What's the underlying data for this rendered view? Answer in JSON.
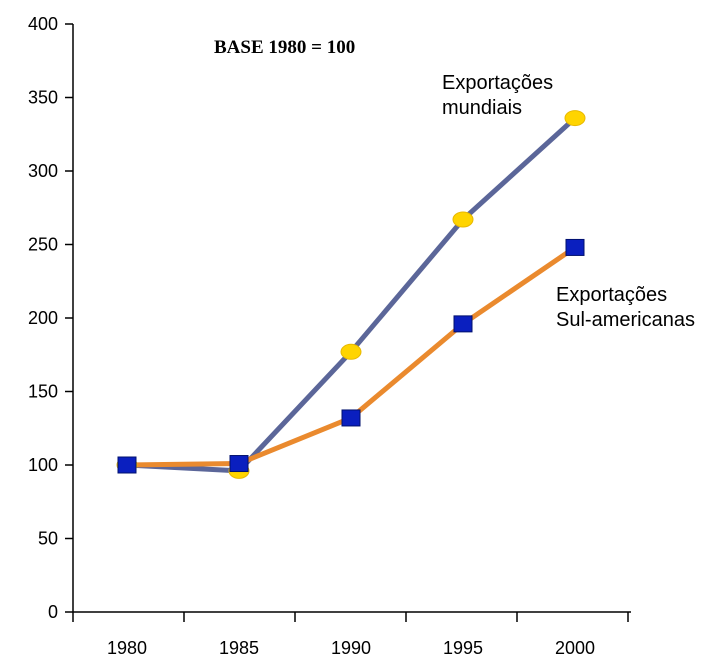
{
  "chart_data": {
    "type": "line",
    "note": "BASE 1980 = 100",
    "categories": [
      "1980",
      "1985",
      "1990",
      "1995",
      "2000"
    ],
    "ylim": [
      0,
      400
    ],
    "yticks": [
      "0",
      "50",
      "100",
      "150",
      "200",
      "250",
      "300",
      "350",
      "400"
    ],
    "grid": false,
    "series": [
      {
        "key": "world",
        "name_lines": [
          "Exportações",
          "mundiais"
        ],
        "line_color": "#5b6699",
        "marker": "ellipse",
        "marker_color": "#ffd400",
        "values": [
          100,
          96,
          177,
          267,
          336
        ]
      },
      {
        "key": "south_america",
        "name_lines": [
          "Exportações",
          "Sul-americanas"
        ],
        "line_color": "#ea8a2e",
        "marker": "square",
        "marker_color": "#0a1fbf",
        "values": [
          100,
          101,
          132,
          196,
          248
        ]
      }
    ]
  }
}
